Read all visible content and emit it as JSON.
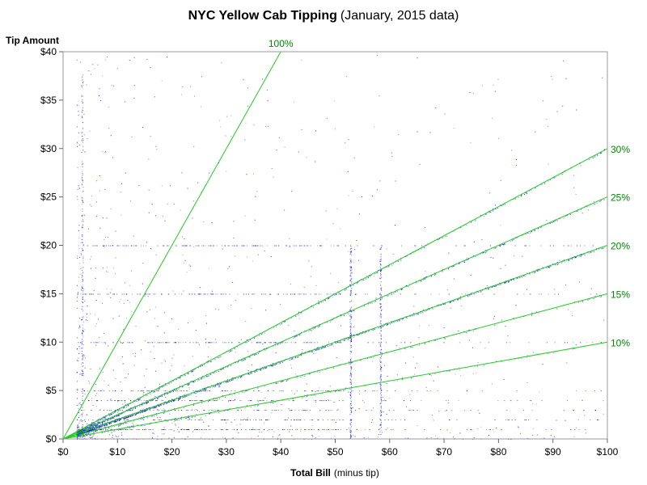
{
  "chart_data": {
    "type": "scatter",
    "title": "NYC Yellow Cab Tipping",
    "subtitle": "(January, 2015 data)",
    "xlabel": "Total Bill",
    "xlabel_note": "(minus tip)",
    "ylabel": "Tip Amount",
    "xlim": [
      0,
      100
    ],
    "ylim": [
      0,
      40
    ],
    "x_ticks": [
      0,
      10,
      20,
      30,
      40,
      50,
      60,
      70,
      80,
      90,
      100
    ],
    "x_tick_labels": [
      "$0",
      "$10",
      "$20",
      "$30",
      "$40",
      "$50",
      "$60",
      "$70",
      "$80",
      "$90",
      "$100"
    ],
    "y_ticks": [
      0,
      5,
      10,
      15,
      20,
      25,
      30,
      35,
      40
    ],
    "y_tick_labels": [
      "$0",
      "$5",
      "$10",
      "$15",
      "$20",
      "$25",
      "$30",
      "$35",
      "$40"
    ],
    "grid": false,
    "point_color": "#0000cc",
    "reference_line_color": "#22cc22",
    "label_color": "#008800",
    "reference_lines": [
      {
        "label": "100%",
        "rate": 1.0
      },
      {
        "label": "30%",
        "rate": 0.3
      },
      {
        "label": "25%",
        "rate": 0.25
      },
      {
        "label": "20%",
        "rate": 0.2
      },
      {
        "label": "15%",
        "rate": 0.15
      },
      {
        "label": "10%",
        "rate": 0.1
      }
    ],
    "tip_rate_bands": [
      {
        "rate": 0.2,
        "weight": 1.0
      },
      {
        "rate": 0.25,
        "weight": 0.55
      },
      {
        "rate": 0.3,
        "weight": 0.4
      },
      {
        "rate": 0.15,
        "weight": 0.2
      },
      {
        "rate": 0.1,
        "weight": 0.1
      }
    ],
    "common_tip_amounts": [
      1,
      2,
      3,
      4,
      5,
      10,
      15,
      20
    ],
    "vertical_clusters": [
      3.5,
      52.8,
      58.3
    ],
    "approx_point_count": 6000
  }
}
